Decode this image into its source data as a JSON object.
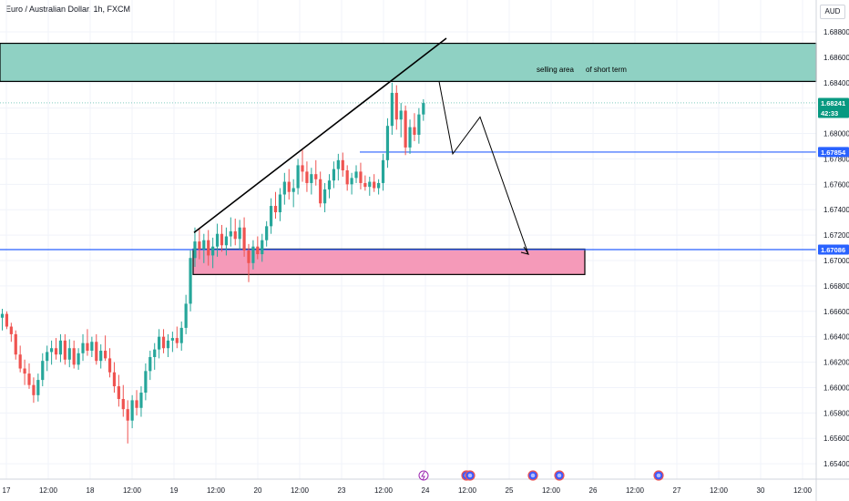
{
  "header": {
    "symbol_title": "Euro / Australian Dollar, 1h, FXCM",
    "currency_button": "AUD"
  },
  "colors": {
    "up": "#26a69a",
    "down": "#ef5350",
    "resistance_zone": "#8fd1c3",
    "support_zone": "#f59ab9",
    "level_line": "#2962ff",
    "last_price_badge": "#089981",
    "level_badge": "#2962ff",
    "grid": "#f0f3fa"
  },
  "chart_data": {
    "type": "candlestick",
    "title": "Euro / Australian Dollar, 1h, FXCM",
    "y_axis": {
      "ylim": [
        1.6532,
        1.6906
      ],
      "ticks": [
        "1.68800",
        "1.68600",
        "1.68400",
        "1.68200",
        "1.68000",
        "1.67800",
        "1.67600",
        "1.67400",
        "1.67200",
        "1.67000",
        "1.66800",
        "1.66600",
        "1.66400",
        "1.66200",
        "1.66000",
        "1.65800",
        "1.65600",
        "1.65400"
      ]
    },
    "x_axis": {
      "ticks": [
        "17",
        "12:00",
        "18",
        "12:00",
        "19",
        "12:00",
        "20",
        "12:00",
        "23",
        "12:00",
        "24",
        "12:00",
        "25",
        "12:00",
        "26",
        "12:00",
        "27",
        "12:00",
        "30",
        "12:00"
      ]
    },
    "price_labels": {
      "last": {
        "price": "1.68241",
        "countdown": "42:33"
      },
      "levels": [
        "1.67854",
        "1.67086"
      ]
    },
    "annotations": {
      "selling_area": "selling area",
      "of_short_term": "of short term"
    },
    "candles": [
      [
        1.6655,
        1.6662,
        1.6645,
        1.6658
      ],
      [
        1.6658,
        1.666,
        1.6646,
        1.6648
      ],
      [
        1.6648,
        1.6651,
        1.6636,
        1.6642
      ],
      [
        1.6642,
        1.6645,
        1.6622,
        1.6626
      ],
      [
        1.6626,
        1.6633,
        1.6612,
        1.6615
      ],
      [
        1.6615,
        1.6622,
        1.6602,
        1.6611
      ],
      [
        1.6611,
        1.6619,
        1.6599,
        1.6602
      ],
      [
        1.6602,
        1.6608,
        1.6588,
        1.6594
      ],
      [
        1.6594,
        1.6611,
        1.6589,
        1.6606
      ],
      [
        1.6606,
        1.6627,
        1.6601,
        1.6621
      ],
      [
        1.6621,
        1.6633,
        1.6613,
        1.6628
      ],
      [
        1.6628,
        1.6637,
        1.6618,
        1.6631
      ],
      [
        1.6631,
        1.6639,
        1.6622,
        1.6626
      ],
      [
        1.6626,
        1.6642,
        1.662,
        1.6637
      ],
      [
        1.6637,
        1.6642,
        1.6618,
        1.6622
      ],
      [
        1.6622,
        1.6638,
        1.6616,
        1.6631
      ],
      [
        1.6631,
        1.6637,
        1.6615,
        1.6618
      ],
      [
        1.6618,
        1.6631,
        1.6614,
        1.6627
      ],
      [
        1.6627,
        1.6642,
        1.6621,
        1.6635
      ],
      [
        1.6635,
        1.6646,
        1.6625,
        1.6629
      ],
      [
        1.6629,
        1.664,
        1.6624,
        1.6636
      ],
      [
        1.6636,
        1.6642,
        1.6618,
        1.6621
      ],
      [
        1.6621,
        1.6634,
        1.6615,
        1.6629
      ],
      [
        1.6629,
        1.6641,
        1.6621,
        1.6623
      ],
      [
        1.6623,
        1.6631,
        1.6608,
        1.6612
      ],
      [
        1.6612,
        1.662,
        1.6596,
        1.6601
      ],
      [
        1.6601,
        1.661,
        1.6585,
        1.6591
      ],
      [
        1.6591,
        1.6602,
        1.6577,
        1.6583
      ],
      [
        1.6583,
        1.659,
        1.6556,
        1.6574
      ],
      [
        1.6574,
        1.6594,
        1.6568,
        1.659
      ],
      [
        1.659,
        1.6598,
        1.6578,
        1.6584
      ],
      [
        1.6584,
        1.6601,
        1.6577,
        1.6596
      ],
      [
        1.6596,
        1.6619,
        1.659,
        1.6613
      ],
      [
        1.6613,
        1.6629,
        1.6606,
        1.6624
      ],
      [
        1.6624,
        1.6635,
        1.6614,
        1.663
      ],
      [
        1.663,
        1.6646,
        1.6623,
        1.664
      ],
      [
        1.664,
        1.6646,
        1.6627,
        1.6631
      ],
      [
        1.6631,
        1.6642,
        1.6624,
        1.6637
      ],
      [
        1.6637,
        1.6644,
        1.6628,
        1.6639
      ],
      [
        1.6639,
        1.6648,
        1.6631,
        1.6635
      ],
      [
        1.6635,
        1.6652,
        1.6629,
        1.6647
      ],
      [
        1.6647,
        1.6673,
        1.6642,
        1.6666
      ],
      [
        1.6666,
        1.6708,
        1.666,
        1.6702
      ],
      [
        1.6702,
        1.6726,
        1.6695,
        1.6715
      ],
      [
        1.6715,
        1.6725,
        1.6701,
        1.6709
      ],
      [
        1.6709,
        1.6721,
        1.6698,
        1.6716
      ],
      [
        1.6716,
        1.6724,
        1.6696,
        1.6704
      ],
      [
        1.6704,
        1.6718,
        1.6694,
        1.6711
      ],
      [
        1.6711,
        1.6729,
        1.6703,
        1.6721
      ],
      [
        1.6721,
        1.6728,
        1.6707,
        1.6712
      ],
      [
        1.6712,
        1.6726,
        1.6704,
        1.6719
      ],
      [
        1.6719,
        1.6734,
        1.6711,
        1.6723
      ],
      [
        1.6723,
        1.6733,
        1.6712,
        1.6717
      ],
      [
        1.6717,
        1.6732,
        1.6709,
        1.6726
      ],
      [
        1.6726,
        1.6734,
        1.6703,
        1.6708
      ],
      [
        1.6708,
        1.6713,
        1.6683,
        1.6698
      ],
      [
        1.6698,
        1.6716,
        1.6693,
        1.6711
      ],
      [
        1.6711,
        1.6719,
        1.6701,
        1.6705
      ],
      [
        1.6705,
        1.6721,
        1.6699,
        1.6716
      ],
      [
        1.6716,
        1.6731,
        1.6711,
        1.6727
      ],
      [
        1.6727,
        1.6749,
        1.6721,
        1.6743
      ],
      [
        1.6743,
        1.6754,
        1.6733,
        1.6738
      ],
      [
        1.6738,
        1.6757,
        1.6731,
        1.6752
      ],
      [
        1.6752,
        1.6769,
        1.6744,
        1.6762
      ],
      [
        1.6762,
        1.6772,
        1.6748,
        1.6754
      ],
      [
        1.6754,
        1.6764,
        1.6742,
        1.6757
      ],
      [
        1.6757,
        1.678,
        1.6752,
        1.6775
      ],
      [
        1.6775,
        1.6787,
        1.6762,
        1.677
      ],
      [
        1.677,
        1.6778,
        1.6754,
        1.6761
      ],
      [
        1.6761,
        1.6773,
        1.6752,
        1.6768
      ],
      [
        1.6768,
        1.6779,
        1.6759,
        1.6764
      ],
      [
        1.6764,
        1.677,
        1.6742,
        1.6745
      ],
      [
        1.6745,
        1.6761,
        1.6738,
        1.6756
      ],
      [
        1.6756,
        1.6768,
        1.6749,
        1.6763
      ],
      [
        1.6763,
        1.6778,
        1.6757,
        1.6772
      ],
      [
        1.6772,
        1.6784,
        1.6763,
        1.6779
      ],
      [
        1.6779,
        1.6785,
        1.6766,
        1.6771
      ],
      [
        1.6771,
        1.6775,
        1.6755,
        1.676
      ],
      [
        1.676,
        1.6769,
        1.6752,
        1.6765
      ],
      [
        1.6765,
        1.6775,
        1.6761,
        1.677
      ],
      [
        1.677,
        1.6777,
        1.6756,
        1.6761
      ],
      [
        1.6761,
        1.6767,
        1.6755,
        1.6758
      ],
      [
        1.6758,
        1.6766,
        1.6751,
        1.6762
      ],
      [
        1.6762,
        1.6768,
        1.6754,
        1.6757
      ],
      [
        1.6757,
        1.6764,
        1.6752,
        1.6761
      ],
      [
        1.6761,
        1.6784,
        1.6755,
        1.6779
      ],
      [
        1.6779,
        1.6812,
        1.6773,
        1.6806
      ],
      [
        1.6806,
        1.684,
        1.6799,
        1.6832
      ],
      [
        1.6832,
        1.6838,
        1.6803,
        1.6811
      ],
      [
        1.6811,
        1.6824,
        1.6797,
        1.6818
      ],
      [
        1.6818,
        1.6822,
        1.6783,
        1.6789
      ],
      [
        1.6789,
        1.6811,
        1.6784,
        1.6805
      ],
      [
        1.6805,
        1.6816,
        1.6794,
        1.6799
      ],
      [
        1.6799,
        1.682,
        1.6792,
        1.6815
      ],
      [
        1.6815,
        1.6827,
        1.681,
        1.6824
      ]
    ]
  },
  "events": [
    "lightning",
    "flag",
    "flag",
    "flag",
    "flag",
    "flag"
  ]
}
